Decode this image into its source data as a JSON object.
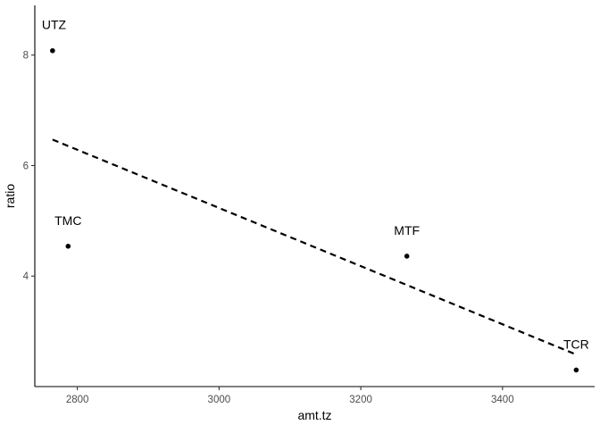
{
  "chart_data": {
    "type": "scatter",
    "xlabel": "amt.tz",
    "ylabel": "ratio",
    "xlim": [
      2740,
      3530
    ],
    "ylim": [
      2.0,
      8.9
    ],
    "x_ticks": [
      2800,
      3000,
      3200,
      3400
    ],
    "y_ticks": [
      4,
      6,
      8
    ],
    "grid": false,
    "points": [
      {
        "label": "UTZ",
        "x": 2765,
        "y": 8.08
      },
      {
        "label": "TMC",
        "x": 2787,
        "y": 4.54
      },
      {
        "label": "MTF",
        "x": 3265,
        "y": 4.36
      },
      {
        "label": "TCR",
        "x": 3504,
        "y": 2.3
      }
    ],
    "trend_line": {
      "style": "dashed",
      "color": "#000000",
      "start": {
        "x": 2765,
        "y": 6.47
      },
      "end": {
        "x": 3504,
        "y": 2.58
      }
    }
  }
}
